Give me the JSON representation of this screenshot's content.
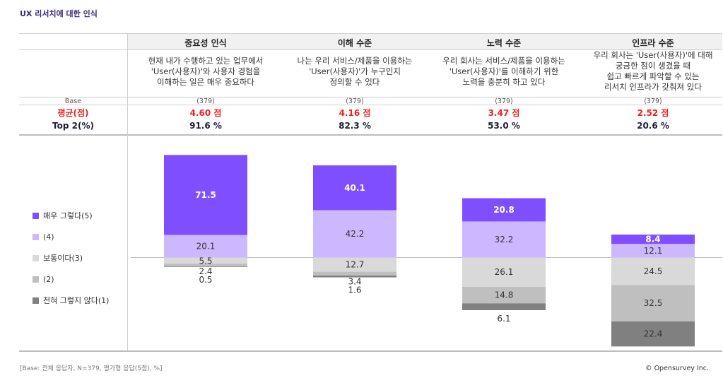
{
  "title": "UX 리서치에 대한 인식",
  "table": {
    "row_labels": {
      "base": "Base",
      "avg": "평균(점)",
      "top2": "Top 2(%)"
    },
    "columns": [
      {
        "title": "중요성 인식",
        "desc": [
          "현재 내가 수행하고 있는 업무에서",
          "'User(사용자)'와 사용자 경험을",
          "이해하는 일은 매우 중요하다"
        ],
        "base": "(379)",
        "avg": "4.60 점",
        "top2": "91.6 %"
      },
      {
        "title": "이해 수준",
        "desc": [
          "나는 우리 서비스/제품을 이용하는",
          "'User(사용자)'가 누구인지",
          "정의할 수 있다"
        ],
        "base": "(379)",
        "avg": "4.16 점",
        "top2": "82.3 %"
      },
      {
        "title": "노력 수준",
        "desc": [
          "우리 회사는 서비스/제품을 이용하는",
          "'User(사용자)'를 이해하기 위한",
          "노력을 충분히 하고 있다"
        ],
        "base": "(379)",
        "avg": "3.47 점",
        "top2": "53.0 %"
      },
      {
        "title": "인프라 수준",
        "desc": [
          "우리 회사는 'User(사용자)'에 대해",
          "궁금한 점이 생겼을 때",
          "쉽고 빠르게 파악할 수 있는",
          "리서치 인프라가 갖춰져 있다"
        ],
        "base": "(379)",
        "avg": "2.52 점",
        "top2": "20.6 %"
      }
    ]
  },
  "chart_data": {
    "type": "bar",
    "stacked": true,
    "orientation": "vertical",
    "alignment": "diverging-at-neutral-top",
    "unit": "%",
    "categories": [
      "중요성 인식",
      "이해 수준",
      "노력 수준",
      "인프라 수준"
    ],
    "series": [
      {
        "name": "매우 그렇다(5)",
        "color": "#7f4fff",
        "values": [
          71.5,
          40.1,
          20.8,
          8.4
        ]
      },
      {
        "name": "(4)",
        "color": "#cbb8ff",
        "values": [
          20.1,
          42.2,
          32.2,
          12.1
        ]
      },
      {
        "name": "보통이다(3)",
        "color": "#d9d9d9",
        "values": [
          5.5,
          12.7,
          26.1,
          24.5
        ]
      },
      {
        "name": "(2)",
        "color": "#bfbfbf",
        "values": [
          2.4,
          3.4,
          14.8,
          32.5
        ]
      },
      {
        "name": "전혀 그렇지 않다(1)",
        "color": "#808080",
        "values": [
          0.5,
          1.6,
          6.1,
          22.4
        ]
      }
    ],
    "legend_position": "left",
    "grid": false
  },
  "footer": {
    "note": "[Base: 전체 응답자, N=379, 평가형 응답(5점), %]",
    "copyright": "© Opensurvey Inc."
  }
}
